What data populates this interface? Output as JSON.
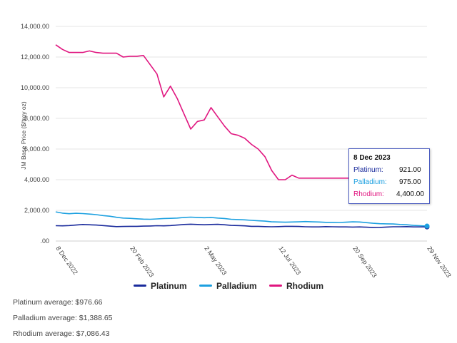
{
  "chart_data": {
    "type": "line",
    "ylabel": "JM Base Price ($/troy oz)",
    "ylim": [
      0,
      14000
    ],
    "yticks": [
      "14,000.00",
      "12,000.00",
      "10,000.00",
      "8,000.00",
      "6,000.00",
      "4,000.00",
      "2,000.00",
      ".00"
    ],
    "ytick_values": [
      14000,
      12000,
      10000,
      8000,
      6000,
      4000,
      2000,
      0
    ],
    "xticks": [
      "8 Dec 2022",
      "20 Feb 2023",
      "2 May 2023",
      "12 Jul 2023",
      "20 Sep 2023",
      "29 Nov 2023"
    ],
    "x": [
      "8 Dec 2022",
      "15 Dec 2022",
      "22 Dec 2022",
      "29 Dec 2022",
      "5 Jan 2023",
      "12 Jan 2023",
      "19 Jan 2023",
      "26 Jan 2023",
      "2 Feb 2023",
      "9 Feb 2023",
      "16 Feb 2023",
      "20 Feb 2023",
      "23 Feb 2023",
      "2 Mar 2023",
      "9 Mar 2023",
      "16 Mar 2023",
      "23 Mar 2023",
      "30 Mar 2023",
      "6 Apr 2023",
      "13 Apr 2023",
      "20 Apr 2023",
      "27 Apr 2023",
      "2 May 2023",
      "4 May 2023",
      "11 May 2023",
      "18 May 2023",
      "25 May 2023",
      "1 Jun 2023",
      "8 Jun 2023",
      "15 Jun 2023",
      "22 Jun 2023",
      "29 Jun 2023",
      "6 Jul 2023",
      "12 Jul 2023",
      "13 Jul 2023",
      "20 Jul 2023",
      "27 Jul 2023",
      "3 Aug 2023",
      "10 Aug 2023",
      "17 Aug 2023",
      "24 Aug 2023",
      "31 Aug 2023",
      "7 Sep 2023",
      "14 Sep 2023",
      "20 Sep 2023",
      "21 Sep 2023",
      "28 Sep 2023",
      "5 Oct 2023",
      "12 Oct 2023",
      "19 Oct 2023",
      "26 Oct 2023",
      "2 Nov 2023",
      "9 Nov 2023",
      "16 Nov 2023",
      "23 Nov 2023",
      "29 Nov 2023"
    ],
    "series": [
      {
        "name": "Platinum",
        "color": "#1a2b9c",
        "values": [
          1000,
          990,
          1010,
          1040,
          1080,
          1060,
          1040,
          1010,
          970,
          940,
          950,
          960,
          960,
          970,
          980,
          1000,
          990,
          1010,
          1040,
          1080,
          1100,
          1080,
          1060,
          1080,
          1090,
          1060,
          1020,
          1010,
          990,
          960,
          960,
          940,
          930,
          940,
          960,
          960,
          950,
          930,
          920,
          920,
          940,
          930,
          920,
          920,
          910,
          920,
          900,
          880,
          890,
          910,
          930,
          930,
          940,
          920,
          920,
          921
        ]
      },
      {
        "name": "Palladium",
        "color": "#1ca0e0",
        "values": [
          1900,
          1820,
          1780,
          1810,
          1790,
          1760,
          1720,
          1660,
          1620,
          1550,
          1500,
          1480,
          1450,
          1430,
          1420,
          1440,
          1470,
          1480,
          1500,
          1540,
          1560,
          1540,
          1520,
          1540,
          1500,
          1470,
          1420,
          1400,
          1380,
          1350,
          1320,
          1300,
          1250,
          1240,
          1230,
          1240,
          1250,
          1270,
          1250,
          1240,
          1220,
          1220,
          1210,
          1230,
          1250,
          1240,
          1200,
          1160,
          1130,
          1120,
          1110,
          1080,
          1060,
          1020,
          1000,
          975
        ]
      },
      {
        "name": "Rhodium",
        "color": "#e0157f",
        "values": [
          12800,
          12500,
          12300,
          12300,
          12300,
          12400,
          12300,
          12250,
          12250,
          12250,
          12000,
          12050,
          12050,
          12100,
          11500,
          10900,
          9400,
          10100,
          9300,
          8300,
          7300,
          7800,
          7900,
          8700,
          8100,
          7500,
          7000,
          6900,
          6700,
          6300,
          6000,
          5500,
          4600,
          4000,
          4000,
          4300,
          4100,
          4100,
          4100,
          4100,
          4100,
          4100,
          4100,
          4100,
          4100,
          4100,
          4100,
          4100,
          4100,
          4100,
          4100,
          4100,
          4100,
          4100,
          4400,
          4400
        ]
      }
    ],
    "legend_position": "bottom"
  },
  "legend": {
    "platinum": "Platinum",
    "palladium": "Palladium",
    "rhodium": "Rhodium"
  },
  "averages": {
    "platinum": "Platinum average:  $976.66",
    "palladium": "Palladium average: $1,388.65",
    "rhodium": "Rhodium average: $7,086.43"
  },
  "tooltip": {
    "date": "8 Dec 2023",
    "rows": [
      {
        "name": "Platinum:",
        "value": "921.00",
        "color": "#1a2b9c"
      },
      {
        "name": "Palladium:",
        "value": "975.00",
        "color": "#1ca0e0"
      },
      {
        "name": "Rhodium:",
        "value": "4,400.00",
        "color": "#e0157f"
      }
    ]
  }
}
